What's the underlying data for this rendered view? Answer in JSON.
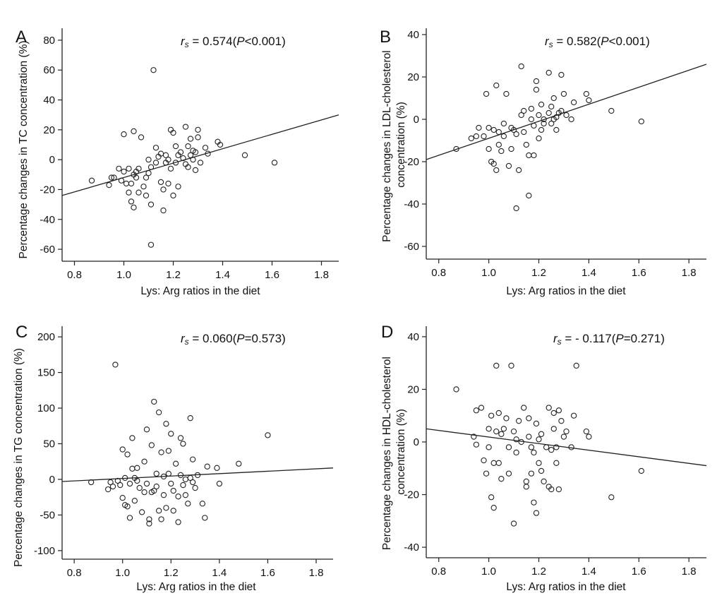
{
  "chart_data": [
    {
      "type": "scatter",
      "panel": "A",
      "annotation_var": "r",
      "annotation_sub": "s",
      "annotation_rest": " = 0.574(",
      "annotation_p": "P",
      "annotation_tail": "<0.001)",
      "xlabel": "Lys: Arg ratios in the diet",
      "ylabel": "Percentage changes in TC concentration (%)",
      "xlim": [
        0.75,
        1.87
      ],
      "ylim": [
        -68,
        88
      ],
      "xticks": [
        0.8,
        1.0,
        1.2,
        1.4,
        1.6,
        1.8
      ],
      "xtick_labels": [
        "0.8",
        "1.0",
        "1.2",
        "1.4",
        "1.6",
        "1.8"
      ],
      "yticks": [
        -60,
        -40,
        -20,
        0,
        20,
        40,
        60,
        80
      ],
      "ytick_labels": [
        "-60",
        "-40",
        "-20",
        "0",
        "20",
        "40",
        "60",
        "80"
      ],
      "fit_line": {
        "x": [
          0.75,
          1.87
        ],
        "y": [
          -24,
          30
        ]
      },
      "points": [
        [
          0.87,
          -14
        ],
        [
          0.94,
          -17
        ],
        [
          0.95,
          -12
        ],
        [
          0.96,
          -12
        ],
        [
          0.98,
          -6
        ],
        [
          0.99,
          -14
        ],
        [
          1.0,
          17
        ],
        [
          1.0,
          -8
        ],
        [
          1.01,
          -16
        ],
        [
          1.02,
          -6
        ],
        [
          1.02,
          -22
        ],
        [
          1.03,
          -28
        ],
        [
          1.03,
          -16
        ],
        [
          1.04,
          19
        ],
        [
          1.04,
          -10
        ],
        [
          1.04,
          -32
        ],
        [
          1.05,
          -8
        ],
        [
          1.05,
          -12
        ],
        [
          1.06,
          -6
        ],
        [
          1.06,
          -22
        ],
        [
          1.07,
          15
        ],
        [
          1.08,
          -18
        ],
        [
          1.09,
          -12
        ],
        [
          1.09,
          -24
        ],
        [
          1.1,
          -9
        ],
        [
          1.1,
          0
        ],
        [
          1.11,
          -5
        ],
        [
          1.11,
          -30
        ],
        [
          1.11,
          -57
        ],
        [
          1.12,
          60
        ],
        [
          1.13,
          -2
        ],
        [
          1.13,
          8
        ],
        [
          1.14,
          2
        ],
        [
          1.15,
          4
        ],
        [
          1.15,
          -15
        ],
        [
          1.16,
          -20
        ],
        [
          1.16,
          -34
        ],
        [
          1.17,
          -2
        ],
        [
          1.17,
          3
        ],
        [
          1.18,
          0
        ],
        [
          1.18,
          -16
        ],
        [
          1.19,
          20
        ],
        [
          1.19,
          -6
        ],
        [
          1.2,
          18
        ],
        [
          1.2,
          -24
        ],
        [
          1.21,
          9
        ],
        [
          1.21,
          -2
        ],
        [
          1.22,
          -18
        ],
        [
          1.22,
          3
        ],
        [
          1.23,
          5
        ],
        [
          1.24,
          1
        ],
        [
          1.25,
          22
        ],
        [
          1.25,
          -3
        ],
        [
          1.26,
          9
        ],
        [
          1.26,
          -5
        ],
        [
          1.27,
          14
        ],
        [
          1.27,
          3
        ],
        [
          1.28,
          6
        ],
        [
          1.28,
          0
        ],
        [
          1.29,
          5
        ],
        [
          1.29,
          -7
        ],
        [
          1.3,
          20
        ],
        [
          1.3,
          15
        ],
        [
          1.31,
          -2
        ],
        [
          1.33,
          8
        ],
        [
          1.34,
          4
        ],
        [
          1.38,
          12
        ],
        [
          1.39,
          10
        ],
        [
          1.49,
          3
        ],
        [
          1.61,
          -2
        ]
      ]
    },
    {
      "type": "scatter",
      "panel": "B",
      "annotation_var": "r",
      "annotation_sub": "s",
      "annotation_rest": " = 0.582(",
      "annotation_p": "P",
      "annotation_tail": "<0.001)",
      "xlabel": "Lys: Arg ratios in the diet",
      "ylabel": "Percentage changes in LDL-cholesterol concentration (%)",
      "ylabel_lines": [
        "Percentage changes in LDL-cholesterol",
        "concentration (%)"
      ],
      "xlim": [
        0.75,
        1.87
      ],
      "ylim": [
        -66,
        43
      ],
      "xticks": [
        0.8,
        1.0,
        1.2,
        1.4,
        1.6,
        1.8
      ],
      "xtick_labels": [
        "0.8",
        "1.0",
        "1.2",
        "1.4",
        "1.6",
        "1.8"
      ],
      "yticks": [
        -60,
        -40,
        -20,
        0,
        20,
        40
      ],
      "ytick_labels": [
        "-60",
        "-40",
        "-20",
        "0",
        "20",
        "40"
      ],
      "fit_line": {
        "x": [
          0.75,
          1.87
        ],
        "y": [
          -19,
          26
        ]
      },
      "points": [
        [
          0.87,
          -14
        ],
        [
          0.93,
          -9
        ],
        [
          0.95,
          -8
        ],
        [
          0.96,
          -4
        ],
        [
          0.98,
          -8
        ],
        [
          0.99,
          12
        ],
        [
          1.0,
          -4
        ],
        [
          1.0,
          -14
        ],
        [
          1.01,
          -20
        ],
        [
          1.02,
          -5
        ],
        [
          1.02,
          -21
        ],
        [
          1.03,
          16
        ],
        [
          1.03,
          -24
        ],
        [
          1.04,
          -6
        ],
        [
          1.04,
          -12
        ],
        [
          1.05,
          -15
        ],
        [
          1.06,
          -2
        ],
        [
          1.06,
          -8
        ],
        [
          1.07,
          12
        ],
        [
          1.08,
          -22
        ],
        [
          1.09,
          -14
        ],
        [
          1.09,
          -4
        ],
        [
          1.1,
          -5
        ],
        [
          1.11,
          -42
        ],
        [
          1.11,
          -7
        ],
        [
          1.12,
          -24
        ],
        [
          1.13,
          25
        ],
        [
          1.13,
          2
        ],
        [
          1.14,
          4
        ],
        [
          1.14,
          -6
        ],
        [
          1.15,
          -12
        ],
        [
          1.16,
          -36
        ],
        [
          1.16,
          -17
        ],
        [
          1.17,
          0
        ],
        [
          1.17,
          5
        ],
        [
          1.18,
          -3
        ],
        [
          1.18,
          -17
        ],
        [
          1.19,
          18
        ],
        [
          1.19,
          14
        ],
        [
          1.2,
          2
        ],
        [
          1.2,
          -9
        ],
        [
          1.21,
          7
        ],
        [
          1.21,
          -5
        ],
        [
          1.22,
          0
        ],
        [
          1.22,
          -2
        ],
        [
          1.24,
          22
        ],
        [
          1.24,
          3
        ],
        [
          1.25,
          6
        ],
        [
          1.25,
          -2
        ],
        [
          1.26,
          10
        ],
        [
          1.26,
          0
        ],
        [
          1.27,
          1
        ],
        [
          1.27,
          -5
        ],
        [
          1.28,
          3
        ],
        [
          1.29,
          21
        ],
        [
          1.29,
          4
        ],
        [
          1.3,
          12
        ],
        [
          1.31,
          2
        ],
        [
          1.33,
          0
        ],
        [
          1.34,
          8
        ],
        [
          1.39,
          12
        ],
        [
          1.4,
          9
        ],
        [
          1.49,
          4
        ],
        [
          1.61,
          -1
        ]
      ]
    },
    {
      "type": "scatter",
      "panel": "C",
      "annotation_var": "r",
      "annotation_sub": "s",
      "annotation_rest": " = 0.060(",
      "annotation_p": "P",
      "annotation_tail": "=0.573)",
      "xlabel": "Lys: Arg ratios in the diet",
      "ylabel": "Percentage changes in TG concentration (%)",
      "xlim": [
        0.75,
        1.87
      ],
      "ylim": [
        -112,
        215
      ],
      "xticks": [
        0.8,
        1.0,
        1.2,
        1.4,
        1.6,
        1.8
      ],
      "xtick_labels": [
        "0.8",
        "1.0",
        "1.2",
        "1.4",
        "1.6",
        "1.8"
      ],
      "yticks": [
        -100,
        -50,
        0,
        50,
        100,
        150,
        200
      ],
      "ytick_labels": [
        "-100",
        "-50",
        "0",
        "50",
        "100",
        "150",
        "200"
      ],
      "fit_line": {
        "x": [
          0.75,
          1.87
        ],
        "y": [
          -3,
          16
        ]
      },
      "points": [
        [
          0.87,
          -4
        ],
        [
          0.94,
          -14
        ],
        [
          0.95,
          -4
        ],
        [
          0.96,
          -10
        ],
        [
          0.97,
          161
        ],
        [
          0.98,
          -2
        ],
        [
          0.99,
          -8
        ],
        [
          1.0,
          42
        ],
        [
          1.0,
          -26
        ],
        [
          1.01,
          2
        ],
        [
          1.01,
          -36
        ],
        [
          1.02,
          35
        ],
        [
          1.02,
          -38
        ],
        [
          1.03,
          -6
        ],
        [
          1.03,
          -54
        ],
        [
          1.04,
          58
        ],
        [
          1.04,
          15
        ],
        [
          1.05,
          -30
        ],
        [
          1.05,
          2
        ],
        [
          1.06,
          16
        ],
        [
          1.06,
          -2
        ],
        [
          1.07,
          -12
        ],
        [
          1.08,
          -46
        ],
        [
          1.09,
          -18
        ],
        [
          1.09,
          25
        ],
        [
          1.1,
          70
        ],
        [
          1.1,
          -6
        ],
        [
          1.11,
          -62
        ],
        [
          1.11,
          -56
        ],
        [
          1.12,
          48
        ],
        [
          1.12,
          -18
        ],
        [
          1.13,
          109
        ],
        [
          1.13,
          -16
        ],
        [
          1.14,
          8
        ],
        [
          1.14,
          -10
        ],
        [
          1.15,
          94
        ],
        [
          1.15,
          -44
        ],
        [
          1.16,
          -56
        ],
        [
          1.16,
          38
        ],
        [
          1.17,
          4
        ],
        [
          1.17,
          -22
        ],
        [
          1.18,
          78
        ],
        [
          1.18,
          -40
        ],
        [
          1.19,
          40
        ],
        [
          1.19,
          8
        ],
        [
          1.2,
          64
        ],
        [
          1.2,
          -6
        ],
        [
          1.21,
          -16
        ],
        [
          1.21,
          -44
        ],
        [
          1.22,
          22
        ],
        [
          1.23,
          -24
        ],
        [
          1.23,
          -60
        ],
        [
          1.24,
          58
        ],
        [
          1.24,
          6
        ],
        [
          1.25,
          50
        ],
        [
          1.25,
          -8
        ],
        [
          1.26,
          0
        ],
        [
          1.26,
          -22
        ],
        [
          1.27,
          -34
        ],
        [
          1.28,
          86
        ],
        [
          1.28,
          2
        ],
        [
          1.29,
          28
        ],
        [
          1.29,
          -4
        ],
        [
          1.3,
          -12
        ],
        [
          1.31,
          6
        ],
        [
          1.33,
          -34
        ],
        [
          1.34,
          -54
        ],
        [
          1.35,
          18
        ],
        [
          1.39,
          16
        ],
        [
          1.4,
          -6
        ],
        [
          1.48,
          22
        ],
        [
          1.6,
          62
        ]
      ]
    },
    {
      "type": "scatter",
      "panel": "D",
      "annotation_var": "r",
      "annotation_sub": "s",
      "annotation_rest": " = - 0.117(",
      "annotation_p": "P",
      "annotation_tail": "=0.271)",
      "xlabel": "Lys: Arg ratios in the diet",
      "ylabel": "Percentage changes in HDL-cholesterol concentration (%)",
      "ylabel_lines": [
        "Percentage changes in HDL-cholesterol",
        "concentration (%)"
      ],
      "xlim": [
        0.75,
        1.87
      ],
      "ylim": [
        -44,
        44
      ],
      "xticks": [
        0.8,
        1.0,
        1.2,
        1.4,
        1.6,
        1.8
      ],
      "xtick_labels": [
        "0.8",
        "1.0",
        "1.2",
        "1.4",
        "1.6",
        "1.8"
      ],
      "yticks": [
        -40,
        -20,
        0,
        20,
        40
      ],
      "ytick_labels": [
        "-40",
        "-20",
        "0",
        "20",
        "40"
      ],
      "fit_line": {
        "x": [
          0.75,
          1.87
        ],
        "y": [
          5,
          -9
        ]
      },
      "points": [
        [
          0.87,
          20
        ],
        [
          0.94,
          2
        ],
        [
          0.95,
          12
        ],
        [
          0.95,
          -1
        ],
        [
          0.97,
          13
        ],
        [
          0.98,
          -7
        ],
        [
          0.99,
          -12
        ],
        [
          1.0,
          5
        ],
        [
          1.0,
          -2
        ],
        [
          1.01,
          10
        ],
        [
          1.01,
          -21
        ],
        [
          1.02,
          -8
        ],
        [
          1.02,
          -25
        ],
        [
          1.03,
          4
        ],
        [
          1.03,
          29
        ],
        [
          1.04,
          11
        ],
        [
          1.04,
          -8
        ],
        [
          1.05,
          3
        ],
        [
          1.05,
          -14
        ],
        [
          1.06,
          5
        ],
        [
          1.07,
          9
        ],
        [
          1.08,
          -12
        ],
        [
          1.08,
          -2
        ],
        [
          1.09,
          29
        ],
        [
          1.1,
          -31
        ],
        [
          1.1,
          4
        ],
        [
          1.11,
          1
        ],
        [
          1.11,
          -4
        ],
        [
          1.12,
          8
        ],
        [
          1.13,
          0
        ],
        [
          1.14,
          13
        ],
        [
          1.15,
          -15
        ],
        [
          1.15,
          -17
        ],
        [
          1.16,
          9
        ],
        [
          1.16,
          2
        ],
        [
          1.17,
          -2
        ],
        [
          1.17,
          -12
        ],
        [
          1.18,
          -4
        ],
        [
          1.18,
          -23
        ],
        [
          1.19,
          7
        ],
        [
          1.19,
          -27
        ],
        [
          1.2,
          1
        ],
        [
          1.2,
          -8
        ],
        [
          1.21,
          -11
        ],
        [
          1.21,
          3
        ],
        [
          1.22,
          -15
        ],
        [
          1.23,
          -2
        ],
        [
          1.24,
          13
        ],
        [
          1.24,
          -17
        ],
        [
          1.25,
          -18
        ],
        [
          1.25,
          -3
        ],
        [
          1.26,
          5
        ],
        [
          1.26,
          11
        ],
        [
          1.27,
          -8
        ],
        [
          1.27,
          -2
        ],
        [
          1.28,
          -18
        ],
        [
          1.28,
          12
        ],
        [
          1.29,
          8
        ],
        [
          1.3,
          2
        ],
        [
          1.31,
          4
        ],
        [
          1.33,
          -2
        ],
        [
          1.34,
          10
        ],
        [
          1.35,
          29
        ],
        [
          1.39,
          4
        ],
        [
          1.4,
          2
        ],
        [
          1.49,
          -21
        ],
        [
          1.61,
          -11
        ]
      ]
    }
  ]
}
